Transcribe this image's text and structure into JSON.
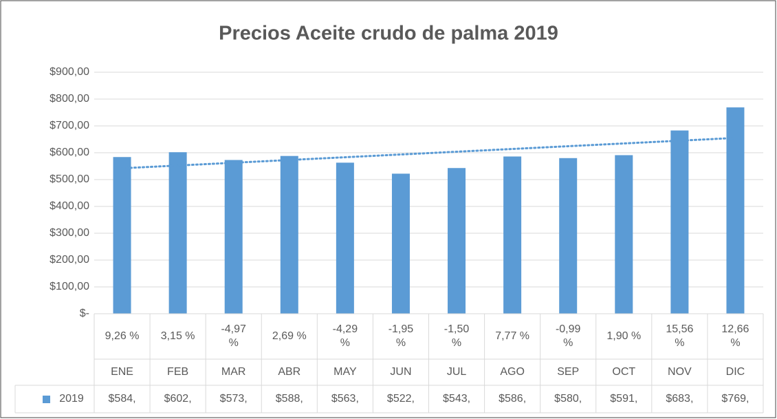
{
  "chart_data": {
    "type": "bar",
    "title": "Precios Aceite crudo de palma 2019",
    "categories": [
      "ENE",
      "FEB",
      "MAR",
      "ABR",
      "MAY",
      "JUN",
      "JUL",
      "AGO",
      "SEP",
      "OCT",
      "NOV",
      "DIC"
    ],
    "category_notes": [
      "9,26 %",
      "3,15 %",
      "-4,97 %",
      "2,69 %",
      "-4,29 %",
      "-1,95 %",
      "-1,50 %",
      "7,77 %",
      "-0,99 %",
      "1,90 %",
      "15,56 %",
      "12,66 %"
    ],
    "series": [
      {
        "name": "2019",
        "color": "#5b9bd5",
        "values": [
          584,
          602,
          573,
          588,
          563,
          522,
          543,
          586,
          580,
          591,
          683,
          769
        ],
        "value_labels": [
          "$584,",
          "$602,",
          "$573,",
          "$588,",
          "$563,",
          "$522,",
          "$543,",
          "$586,",
          "$580,",
          "$591,",
          "$683,",
          "$769,"
        ]
      }
    ],
    "trendline": "linear",
    "ylim": [
      0,
      900
    ],
    "yticks": [
      {
        "value": 0,
        "label": "$-"
      },
      {
        "value": 100,
        "label": "$100,00"
      },
      {
        "value": 200,
        "label": "$200,00"
      },
      {
        "value": 300,
        "label": "$300,00"
      },
      {
        "value": 400,
        "label": "$400,00"
      },
      {
        "value": 500,
        "label": "$500,00"
      },
      {
        "value": 600,
        "label": "$600,00"
      },
      {
        "value": 700,
        "label": "$700,00"
      },
      {
        "value": 800,
        "label": "$800,00"
      },
      {
        "value": 900,
        "label": "$900,00"
      }
    ],
    "grid": true
  }
}
